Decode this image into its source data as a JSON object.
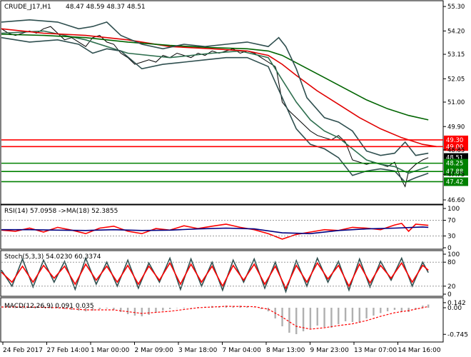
{
  "chart_data": [
    {
      "panel": "price",
      "type": "line",
      "symbol": "CRUDE_J17,H1",
      "ohlc": "48.47 48.59 48.37 48.51",
      "ylim": [
        46.6,
        55.4
      ],
      "price_axis_ticks": [
        "55.30",
        "54.20",
        "53.15",
        "52.05",
        "51.00",
        "49.90",
        "48.85",
        "47.75",
        "46.60"
      ],
      "x_ticks": [
        "24 Feb 2017",
        "27 Feb 14:00",
        "1 Mar 00:00",
        "2 Mar 09:00",
        "3 Mar 18:00",
        "7 Mar 04:00",
        "8 Mar 13:00",
        "9 Mar 23:00",
        "13 Mar 07:00",
        "14 Mar 16:00"
      ],
      "levels": [
        {
          "label": "49.30",
          "value": 49.3,
          "color": "#ff0000"
        },
        {
          "label": "49.00",
          "value": 49.0,
          "color": "#ff0000"
        },
        {
          "label": "48.51",
          "value": 48.51,
          "color": "#000000"
        },
        {
          "label": "48.25",
          "value": 48.25,
          "color": "#008000"
        },
        {
          "label": "47.88",
          "value": 47.88,
          "color": "#008000"
        },
        {
          "label": "47.42",
          "value": 47.42,
          "color": "#008000"
        }
      ],
      "series": [
        {
          "role": "close",
          "color": "#000000",
          "x": [
            0,
            10,
            20,
            30,
            40,
            50,
            60,
            70,
            80,
            90,
            100,
            110,
            120,
            130,
            140,
            150,
            160,
            170,
            180,
            190,
            200,
            210,
            220,
            230,
            240,
            250,
            260,
            270,
            280,
            290,
            300,
            310,
            320,
            330,
            340,
            350,
            360,
            370,
            380,
            390,
            392,
            400,
            410,
            420,
            430,
            440,
            450,
            460,
            470,
            480,
            490,
            500,
            510,
            520,
            530,
            540,
            550,
            560,
            570,
            575,
            580,
            590,
            600,
            608
          ],
          "y": [
            54.3,
            54.1,
            54.0,
            54.1,
            54.2,
            54.1,
            54.3,
            54.4,
            54.1,
            53.8,
            53.9,
            53.7,
            53.5,
            53.9,
            54.0,
            53.7,
            53.6,
            53.2,
            53.0,
            52.7,
            52.8,
            52.9,
            52.8,
            53.1,
            53.0,
            53.2,
            53.1,
            53.0,
            53.2,
            53.1,
            53.3,
            53.2,
            53.3,
            53.4,
            53.2,
            53.3,
            53.2,
            53.0,
            52.8,
            52.6,
            52.4,
            51.0,
            50.6,
            50.3,
            50.0,
            49.7,
            49.5,
            49.4,
            49.3,
            49.5,
            49.2,
            48.4,
            48.3,
            48.2,
            48.3,
            48.2,
            48.1,
            48.3,
            47.5,
            47.2,
            47.9,
            48.2,
            48.4,
            48.5
          ]
        },
        {
          "role": "ma-fast",
          "color": "#2f6f4f",
          "x": [
            0,
            60,
            120,
            180,
            240,
            300,
            340,
            380,
            400,
            420,
            440,
            460,
            480,
            500,
            520,
            540,
            560,
            580,
            608
          ],
          "y": [
            54.1,
            54.2,
            53.8,
            53.2,
            53.0,
            53.2,
            53.3,
            53.0,
            52.0,
            51.0,
            50.2,
            49.7,
            49.4,
            48.9,
            48.4,
            48.2,
            48.1,
            47.8,
            48.1
          ]
        },
        {
          "role": "ma-red",
          "color": "#e00000",
          "x": [
            0,
            60,
            120,
            180,
            240,
            300,
            350,
            380,
            400,
            420,
            450,
            480,
            510,
            540,
            570,
            600,
            620
          ],
          "y": [
            54.3,
            54.1,
            54.0,
            53.8,
            53.5,
            53.4,
            53.3,
            53.1,
            52.7,
            52.2,
            51.5,
            50.9,
            50.3,
            49.8,
            49.4,
            49.1,
            49.0
          ]
        },
        {
          "role": "ma-green",
          "color": "#006400",
          "x": [
            0,
            60,
            120,
            180,
            240,
            300,
            350,
            380,
            400,
            430,
            460,
            490,
            520,
            550,
            580,
            608
          ],
          "y": [
            54.05,
            54.0,
            53.9,
            53.7,
            53.55,
            53.45,
            53.4,
            53.3,
            53.1,
            52.6,
            52.1,
            51.6,
            51.1,
            50.7,
            50.4,
            50.2
          ]
        },
        {
          "role": "band-upper",
          "color": "#2f4f4f",
          "x": [
            0,
            40,
            80,
            110,
            130,
            150,
            170,
            200,
            230,
            260,
            290,
            320,
            350,
            380,
            395,
            405,
            420,
            435,
            460,
            480,
            500,
            520,
            540,
            560,
            575,
            590,
            608
          ],
          "y": [
            54.6,
            54.7,
            54.6,
            54.3,
            54.4,
            54.6,
            54.0,
            53.6,
            53.4,
            53.6,
            53.5,
            53.6,
            53.7,
            53.5,
            53.9,
            53.5,
            52.5,
            51.2,
            50.3,
            50.1,
            49.7,
            48.8,
            48.6,
            48.7,
            49.2,
            48.6,
            48.7
          ]
        },
        {
          "role": "band-lower",
          "color": "#2f4f4f",
          "x": [
            0,
            40,
            80,
            110,
            130,
            150,
            170,
            200,
            230,
            260,
            290,
            320,
            350,
            380,
            400,
            420,
            440,
            460,
            480,
            500,
            520,
            540,
            560,
            575,
            590,
            608
          ],
          "y": [
            53.9,
            53.7,
            53.8,
            53.6,
            53.2,
            53.4,
            53.3,
            52.5,
            52.7,
            52.8,
            52.9,
            53.0,
            53.0,
            52.6,
            51.2,
            49.8,
            49.1,
            48.9,
            48.5,
            47.7,
            47.9,
            48.0,
            47.9,
            47.4,
            47.6,
            47.8
          ]
        }
      ]
    },
    {
      "panel": "rsi",
      "type": "line",
      "title": "RSI(14) 57.0958 ->MA(18) 52.3855",
      "ylim": [
        0,
        100
      ],
      "y_ticks": [
        "100",
        "70",
        "30",
        "0"
      ],
      "series": [
        {
          "role": "rsi",
          "color": "#ff0000",
          "x": [
            0,
            20,
            40,
            60,
            80,
            100,
            120,
            140,
            160,
            180,
            200,
            220,
            240,
            260,
            280,
            300,
            320,
            340,
            360,
            380,
            400,
            420,
            440,
            460,
            480,
            500,
            520,
            540,
            560,
            570,
            580,
            590,
            608
          ],
          "y": [
            45,
            42,
            50,
            40,
            52,
            45,
            36,
            50,
            55,
            42,
            36,
            49,
            45,
            56,
            49,
            55,
            60,
            52,
            46,
            36,
            22,
            34,
            40,
            46,
            44,
            52,
            50,
            46,
            58,
            62,
            42,
            60,
            57
          ]
        },
        {
          "role": "rsi-ma",
          "color": "#000080",
          "x": [
            0,
            40,
            80,
            120,
            160,
            200,
            240,
            280,
            320,
            360,
            400,
            440,
            480,
            520,
            560,
            600,
            608
          ],
          "y": [
            46,
            46,
            45,
            44,
            46,
            44,
            45,
            48,
            50,
            48,
            38,
            36,
            44,
            48,
            50,
            53,
            52
          ]
        }
      ]
    },
    {
      "panel": "stoch",
      "type": "line",
      "title": "Stoch(5,3,3) 54.0230 60.3374",
      "ylim": [
        0,
        100
      ],
      "y_ticks": [
        "100",
        "80",
        "20",
        "0"
      ],
      "series": [
        {
          "role": "stoch-k",
          "color": "#2f4f4f",
          "x": [
            0,
            15,
            30,
            45,
            60,
            75,
            90,
            105,
            120,
            135,
            150,
            165,
            180,
            195,
            210,
            225,
            240,
            255,
            270,
            285,
            300,
            315,
            330,
            345,
            360,
            375,
            390,
            405,
            420,
            435,
            450,
            465,
            480,
            495,
            510,
            525,
            540,
            555,
            570,
            585,
            600,
            608
          ],
          "y": [
            60,
            20,
            88,
            18,
            85,
            30,
            82,
            12,
            90,
            25,
            80,
            20,
            85,
            15,
            78,
            30,
            90,
            12,
            88,
            20,
            80,
            10,
            85,
            30,
            88,
            15,
            80,
            6,
            84,
            20,
            90,
            30,
            82,
            10,
            88,
            18,
            82,
            35,
            90,
            20,
            80,
            54
          ]
        },
        {
          "role": "stoch-d",
          "color": "#ff0000",
          "x": [
            0,
            15,
            30,
            45,
            60,
            75,
            90,
            105,
            120,
            135,
            150,
            165,
            180,
            195,
            210,
            225,
            240,
            255,
            270,
            285,
            300,
            315,
            330,
            345,
            360,
            375,
            390,
            405,
            420,
            435,
            450,
            465,
            480,
            495,
            510,
            525,
            540,
            555,
            570,
            585,
            600,
            608
          ],
          "y": [
            55,
            30,
            70,
            30,
            72,
            40,
            70,
            25,
            75,
            35,
            70,
            30,
            72,
            25,
            70,
            35,
            78,
            25,
            75,
            30,
            70,
            20,
            72,
            35,
            75,
            25,
            70,
            15,
            72,
            30,
            78,
            38,
            72,
            20,
            75,
            28,
            72,
            40,
            78,
            30,
            72,
            60
          ]
        }
      ]
    },
    {
      "panel": "macd",
      "type": "bar",
      "title": "MACD(12,26,9) 0.091 0.035",
      "ylim": [
        -0.9,
        0.2
      ],
      "y_ticks": [
        "0.142",
        "0.00",
        "-0.745"
      ],
      "series": [
        {
          "role": "histogram",
          "color": "#b0b0b0",
          "x": [
            0,
            10,
            20,
            30,
            40,
            50,
            60,
            70,
            80,
            90,
            100,
            110,
            120,
            130,
            140,
            150,
            160,
            170,
            180,
            190,
            200,
            210,
            220,
            230,
            240,
            250,
            260,
            270,
            280,
            290,
            300,
            310,
            320,
            330,
            340,
            350,
            360,
            370,
            380,
            390,
            400,
            410,
            420,
            430,
            440,
            450,
            460,
            470,
            480,
            490,
            500,
            510,
            520,
            530,
            540,
            550,
            560,
            570,
            580,
            590,
            600,
            608
          ],
          "values": [
            0.05,
            0.04,
            0.0,
            -0.02,
            0.02,
            0.04,
            0.05,
            0.03,
            0.0,
            -0.04,
            -0.06,
            -0.08,
            -0.1,
            -0.08,
            -0.04,
            -0.02,
            -0.06,
            -0.12,
            -0.18,
            -0.22,
            -0.24,
            -0.2,
            -0.14,
            -0.08,
            -0.04,
            0.0,
            -0.02,
            -0.01,
            0.02,
            0.03,
            0.05,
            0.04,
            0.06,
            0.05,
            0.06,
            0.04,
            0.01,
            -0.04,
            -0.1,
            -0.3,
            -0.52,
            -0.7,
            -0.74,
            -0.66,
            -0.58,
            -0.5,
            -0.54,
            -0.56,
            -0.46,
            -0.38,
            -0.4,
            -0.42,
            -0.3,
            -0.22,
            -0.15,
            -0.1,
            -0.06,
            -0.1,
            -0.12,
            -0.04,
            0.06,
            0.09
          ]
        },
        {
          "role": "signal",
          "color": "#ff0000",
          "x": [
            0,
            40,
            80,
            120,
            160,
            200,
            240,
            280,
            320,
            360,
            380,
            400,
            420,
            440,
            460,
            480,
            500,
            520,
            540,
            560,
            580,
            600,
            608
          ],
          "y": [
            0.02,
            0.02,
            0.0,
            -0.06,
            -0.06,
            -0.16,
            -0.1,
            0.0,
            0.04,
            0.03,
            -0.04,
            -0.26,
            -0.52,
            -0.6,
            -0.56,
            -0.5,
            -0.45,
            -0.36,
            -0.24,
            -0.14,
            -0.08,
            0.0,
            0.035
          ]
        }
      ]
    }
  ]
}
